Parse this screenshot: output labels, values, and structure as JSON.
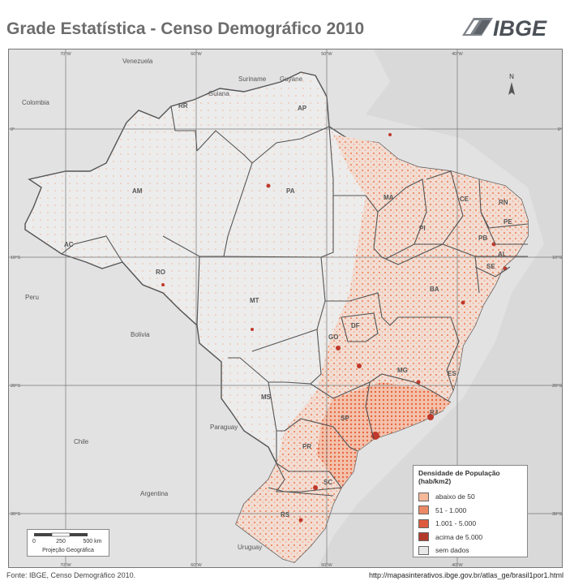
{
  "title": "Grade Estatística - Censo Demográfico 2010",
  "logo_text": "IBGE",
  "colors": {
    "background_out": "#dcdcdc",
    "brazil_fill": "#ececec",
    "border": "#5a5a5a",
    "density_low": "#f4b89a",
    "density_mid": "#ec8a66",
    "density_high": "#dd5a3e",
    "density_top": "#b23a2a",
    "no_data": "#e8e8e8"
  },
  "countries": {
    "venezuela": "Venezuela",
    "suriname": "Suriname",
    "guyana_en": "Guyane",
    "guiana": "Guiana",
    "colombia": "Colombia",
    "peru": "Peru",
    "bolivia": "Bolivia",
    "paraguay": "Paraguay",
    "chile": "Chile",
    "argentina": "Argentina",
    "uruguay": "Uruguay"
  },
  "states": {
    "RR": "RR",
    "AP": "AP",
    "AM": "AM",
    "PA": "PA",
    "MA": "MA",
    "CE": "CE",
    "RN": "RN",
    "PE": "PE",
    "PB": "PB",
    "PI": "PI",
    "AL": "AL",
    "SE": "SE",
    "AC": "AC",
    "RO": "RO",
    "MT": "MT",
    "BA": "BA",
    "DF": "DF",
    "GO": "GO",
    "MG": "MG",
    "ES": "ES",
    "MS": "MS",
    "SP": "SP",
    "RJ": "RJ",
    "PR": "PR",
    "SC": "SC",
    "RS": "RS"
  },
  "graticule": {
    "top": [
      "70°W",
      "60°W",
      "50°W",
      "40°W"
    ],
    "bottom": [
      "70°W",
      "60°W",
      "50°W",
      "40°W"
    ],
    "left": [
      "0°",
      "10°S",
      "20°S",
      "30°S"
    ],
    "right": [
      "0°",
      "10°S",
      "20°S",
      "30°S"
    ]
  },
  "north_label": "N",
  "legend": {
    "title": "Densidade de População",
    "subtitle": "(hab/km2)",
    "items": [
      {
        "label": "abaixo de 50",
        "color": "#f4b89a"
      },
      {
        "label": "51 - 1.000",
        "color": "#ec8a66"
      },
      {
        "label": "1.001 - 5.000",
        "color": "#dd5a3e"
      },
      {
        "label": "acima de 5.000",
        "color": "#b23a2a"
      },
      {
        "label": "sem dados",
        "color": "#e8e8e8"
      }
    ]
  },
  "scale": {
    "ticks": [
      "0",
      "250",
      "500 km"
    ],
    "projection": "Projeção Geográfica"
  },
  "footer": {
    "source": "Fonte: IBGE, Censo Demográfico 2010.",
    "url": "http://mapasinterativos.ibge.gov.br/atlas_ge/brasil1por1.html"
  }
}
